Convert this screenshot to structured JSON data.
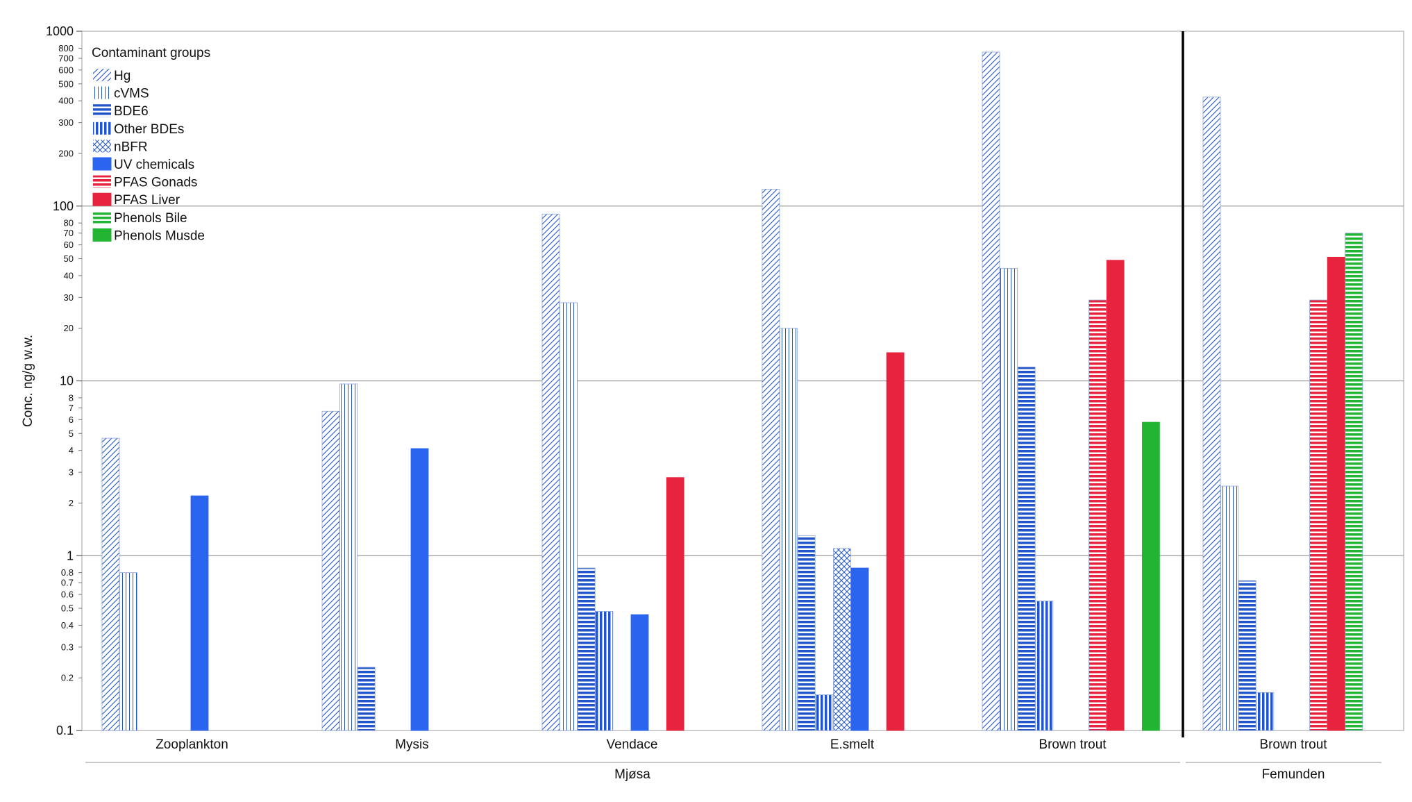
{
  "chart_data": {
    "type": "bar",
    "scale": "log",
    "ylabel": "Conc. ng/g w.w.",
    "ylim": [
      0.1,
      1000
    ],
    "y_ticks_major": [
      "0.1",
      "1",
      "10",
      "100",
      "1000"
    ],
    "y_ticks_minor": [
      {
        "value": 0.2,
        "label": "0.2"
      },
      {
        "value": 0.3,
        "label": "0.3"
      },
      {
        "value": 0.4,
        "label": "0.4"
      },
      {
        "value": 0.5,
        "label": "0.5"
      },
      {
        "value": 0.6,
        "label": "0.6"
      },
      {
        "value": 0.7,
        "label": "0.7"
      },
      {
        "value": 0.8,
        "label": "0.8"
      },
      {
        "value": 2,
        "label": "2"
      },
      {
        "value": 3,
        "label": "3"
      },
      {
        "value": 4,
        "label": "4"
      },
      {
        "value": 5,
        "label": "5"
      },
      {
        "value": 6,
        "label": "6"
      },
      {
        "value": 7,
        "label": "7"
      },
      {
        "value": 8,
        "label": "8"
      },
      {
        "value": 20,
        "label": "20"
      },
      {
        "value": 30,
        "label": "30"
      },
      {
        "value": 40,
        "label": "40"
      },
      {
        "value": 50,
        "label": "50"
      },
      {
        "value": 60,
        "label": "60"
      },
      {
        "value": 70,
        "label": "70"
      },
      {
        "value": 80,
        "label": "80"
      },
      {
        "value": 200,
        "label": "200"
      },
      {
        "value": 300,
        "label": "300"
      },
      {
        "value": 400,
        "label": "400"
      },
      {
        "value": 500,
        "label": "500"
      },
      {
        "value": 600,
        "label": "600"
      },
      {
        "value": 700,
        "label": "700"
      },
      {
        "value": 800,
        "label": "800"
      }
    ],
    "grid": "horizontal at decades",
    "legend_title": "Contaminant groups",
    "legend_position": "top-left",
    "series": [
      {
        "name": "Hg",
        "color": "#2255cc",
        "pattern": "diagonal"
      },
      {
        "name": "cVMS",
        "color": "#2255cc",
        "pattern": "vertical-fine"
      },
      {
        "name": "BDE6",
        "color": "#2255cc",
        "pattern": "horizontal"
      },
      {
        "name": "Other BDEs",
        "color": "#2255cc",
        "pattern": "vertical"
      },
      {
        "name": "nBFR",
        "color": "#2255cc",
        "pattern": "crosshatch"
      },
      {
        "name": "UV chemicals",
        "color": "#2a64ef",
        "pattern": "solid"
      },
      {
        "name": "PFAS Gonads",
        "color": "#e8233f",
        "pattern": "horizontal"
      },
      {
        "name": "PFAS Liver",
        "color": "#e8233f",
        "pattern": "solid"
      },
      {
        "name": "Phenols Bile",
        "color": "#22b533",
        "pattern": "horizontal"
      },
      {
        "name": "Phenols Musde",
        "color": "#22b533",
        "pattern": "solid"
      }
    ],
    "categories": [
      "Zooplankton",
      "Mysis",
      "Vendace",
      "E.smelt",
      "Brown trout",
      "Brown trout"
    ],
    "groups": [
      {
        "label": "Mjøsa",
        "categories": [
          0,
          1,
          2,
          3,
          4
        ]
      },
      {
        "label": "Femunden",
        "categories": [
          5
        ]
      }
    ],
    "values": [
      [
        4.7,
        0.8,
        null,
        null,
        null,
        2.2,
        null,
        null,
        null,
        null
      ],
      [
        6.7,
        9.6,
        0.23,
        null,
        null,
        4.1,
        null,
        null,
        null,
        null
      ],
      [
        90,
        28,
        0.85,
        0.48,
        null,
        0.46,
        null,
        2.8,
        null,
        null
      ],
      [
        125,
        20,
        1.3,
        0.16,
        1.1,
        0.85,
        null,
        14.5,
        null,
        null
      ],
      [
        760,
        44,
        12,
        0.55,
        null,
        null,
        29,
        49,
        null,
        5.8
      ],
      [
        420,
        2.5,
        0.72,
        0.165,
        null,
        null,
        29,
        51,
        70,
        null
      ]
    ]
  }
}
